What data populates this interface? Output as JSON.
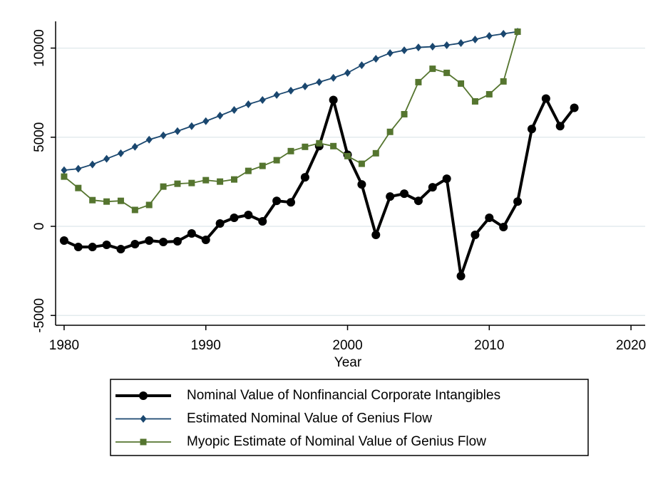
{
  "chart_data": {
    "type": "line",
    "x_label": "Year",
    "x": [
      1980,
      1981,
      1982,
      1983,
      1984,
      1985,
      1986,
      1987,
      1988,
      1989,
      1990,
      1991,
      1992,
      1993,
      1994,
      1995,
      1996,
      1997,
      1998,
      1999,
      2000,
      2001,
      2002,
      2003,
      2004,
      2005,
      2006,
      2007,
      2008,
      2009,
      2010,
      2011,
      2012,
      2013,
      2014,
      2015,
      2016
    ],
    "xlim": [
      1979.4,
      2021
    ],
    "xticks": [
      1980,
      1990,
      2000,
      2010,
      2020
    ],
    "ylim": [
      -5550,
      11500
    ],
    "yticks": [
      -5000,
      0,
      5000,
      10000
    ],
    "grid": true,
    "series": [
      {
        "name": "Nominal Value of Nonfinancial Corporate Intangibles",
        "color": "#000000",
        "marker": "circle",
        "values": [
          -800,
          -1160,
          -1160,
          -1040,
          -1280,
          -1000,
          -800,
          -880,
          -840,
          -400,
          -760,
          160,
          480,
          640,
          280,
          1430,
          1350,
          2750,
          4500,
          7090,
          4020,
          2350,
          -480,
          1670,
          1830,
          1430,
          2190,
          2670,
          -2790,
          -480,
          480,
          -40,
          1390,
          5460,
          7170,
          5620,
          6650
        ]
      },
      {
        "name": "Estimated Nominal Value of Genius Flow",
        "color": "#1a476f",
        "marker": "diamond",
        "values": [
          3150,
          3230,
          3470,
          3790,
          4100,
          4460,
          4860,
          5100,
          5340,
          5620,
          5900,
          6210,
          6530,
          6850,
          7090,
          7370,
          7610,
          7850,
          8090,
          8330,
          8610,
          9040,
          9400,
          9720,
          9880,
          10040,
          10080,
          10160,
          10280,
          10480,
          10680,
          10800,
          10920,
          null,
          null,
          null,
          null
        ]
      },
      {
        "name": "Myopic Estimate of Nominal Value of Genius Flow",
        "color": "#55752f",
        "marker": "square",
        "values": [
          2790,
          2150,
          1470,
          1390,
          1430,
          920,
          1200,
          2230,
          2390,
          2430,
          2590,
          2510,
          2630,
          3110,
          3390,
          3710,
          4220,
          4460,
          4660,
          4500,
          3940,
          3510,
          4100,
          5300,
          6290,
          8090,
          8840,
          8610,
          8010,
          7010,
          7410,
          8130,
          10920,
          null,
          null,
          null,
          null
        ]
      }
    ]
  }
}
